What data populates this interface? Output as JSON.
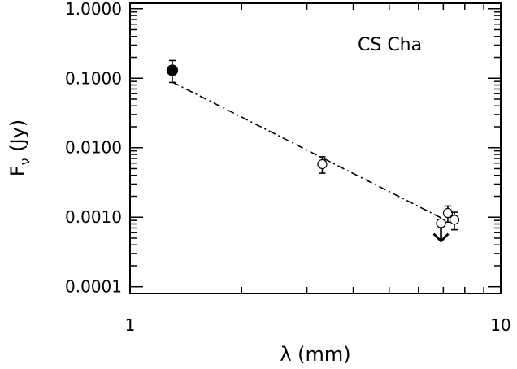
{
  "chart_data": {
    "type": "scatter",
    "xscale": "log",
    "yscale": "log",
    "xlim": [
      1,
      10
    ],
    "ylim": [
      8e-05,
      1.2
    ],
    "xlabel": "λ (mm)",
    "ylabel_main": "F",
    "ylabel_sub": "ν",
    "ylabel_tail": " (Jy)",
    "annotation": "CS Cha",
    "x_ticks": [
      {
        "value": 1,
        "label": "1"
      },
      {
        "value": 10,
        "label": "10"
      }
    ],
    "y_ticks": [
      {
        "value": 0.0001,
        "label": "0.0001"
      },
      {
        "value": 0.001,
        "label": "0.0010"
      },
      {
        "value": 0.01,
        "label": "0.0100"
      },
      {
        "value": 0.1,
        "label": "0.1000"
      },
      {
        "value": 1,
        "label": "1.0000"
      }
    ],
    "points": [
      {
        "x": 1.3,
        "y": 0.13,
        "yerr_low": 0.043,
        "yerr_high": 0.05,
        "filled": true
      },
      {
        "x": 3.3,
        "y": 0.0058,
        "yerr_low": 0.0015,
        "yerr_high": 0.0016,
        "filled": false
      },
      {
        "x": 7.2,
        "y": 0.00115,
        "yerr_low": 0.0003,
        "yerr_high": 0.0003,
        "filled": false
      },
      {
        "x": 7.5,
        "y": 0.00092,
        "yerr_low": 0.00026,
        "yerr_high": 0.00026,
        "filled": false
      },
      {
        "x": 6.9,
        "y": 0.00082,
        "yerr_low": 0,
        "yerr_high": 0,
        "filled": false,
        "upper_limit": true
      }
    ],
    "fit_line": {
      "x": [
        1.3,
        6.9
      ],
      "y": [
        0.088,
        0.00098
      ],
      "style": "dash-dot"
    }
  }
}
